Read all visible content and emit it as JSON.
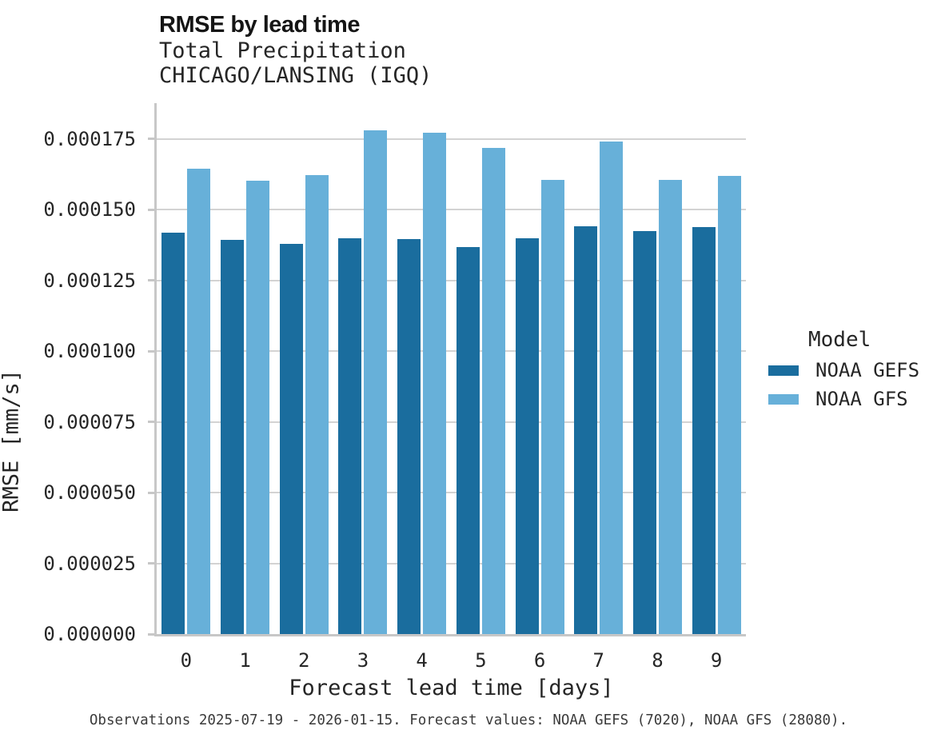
{
  "chart_data": {
    "type": "bar",
    "title": "RMSE by lead time",
    "subtitle": [
      "Total Precipitation",
      "CHICAGO/LANSING (IGQ)"
    ],
    "xlabel": "Forecast lead time [days]",
    "ylabel": "RMSE [mm/s]",
    "categories": [
      "0",
      "1",
      "2",
      "3",
      "4",
      "5",
      "6",
      "7",
      "8",
      "9"
    ],
    "series": [
      {
        "name": "NOAA GEFS",
        "color": "#1a6d9e",
        "values": [
          0.000142,
          0.0001393,
          0.0001379,
          0.0001398,
          0.0001396,
          0.0001367,
          0.00014,
          0.0001441,
          0.0001424,
          0.0001438
        ]
      },
      {
        "name": "NOAA GFS",
        "color": "#67b0d9",
        "values": [
          0.0001645,
          0.0001604,
          0.0001624,
          0.0001782,
          0.0001773,
          0.0001719,
          0.0001606,
          0.0001742,
          0.0001606,
          0.0001619
        ]
      }
    ],
    "ylim": [
      0,
      0.0001877
    ],
    "yticks": [
      0,
      2.5e-05,
      5e-05,
      7.5e-05,
      0.0001,
      0.000125,
      0.00015,
      0.000175
    ],
    "ytick_labels": [
      "0.000000",
      "0.000025",
      "0.000050",
      "0.000075",
      "0.000100",
      "0.000125",
      "0.000150",
      "0.000175"
    ],
    "grid": "horizontal",
    "legend_title": "Model",
    "legend_position": "right"
  },
  "caption": "Observations 2025-07-19 - 2026-01-15. Forecast values: NOAA GEFS (7020), NOAA GFS (28080)."
}
